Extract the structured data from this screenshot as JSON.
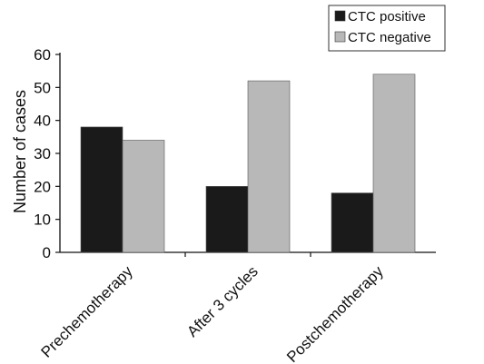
{
  "chart_data": {
    "type": "bar",
    "title": "",
    "xlabel": "",
    "ylabel": "Number of cases",
    "categories": [
      "Prechemotherapy",
      "After 3 cycles",
      "Postchemotherapy"
    ],
    "series": [
      {
        "name": "CTC positive",
        "values": [
          38,
          20,
          18
        ],
        "color": "#1a1a1a"
      },
      {
        "name": "CTC negative",
        "values": [
          34,
          52,
          54
        ],
        "color": "#b8b8b8"
      }
    ],
    "ylim": [
      0,
      60
    ],
    "yticks": [
      0,
      10,
      20,
      30,
      40,
      50,
      60
    ],
    "grid": false,
    "legend_position": "top-right"
  }
}
